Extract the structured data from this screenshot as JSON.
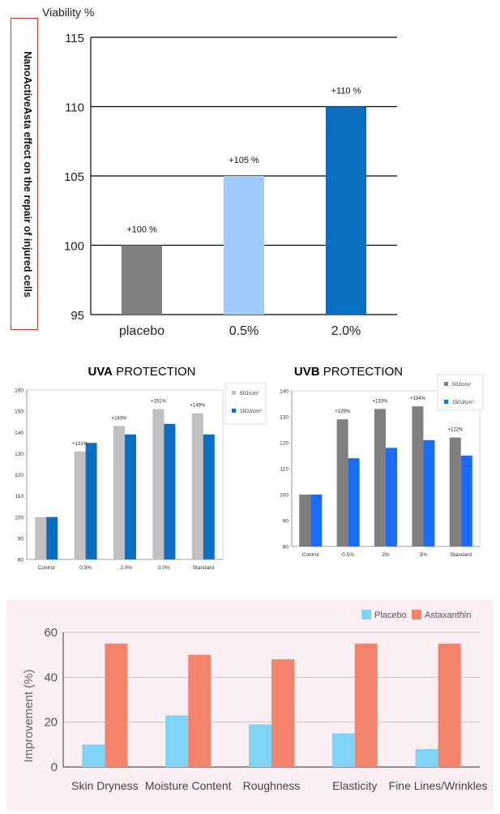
{
  "chart_data": [
    {
      "type": "bar",
      "side_label": "NanoActiveAsta effect on the repair of injured cells",
      "ylabel": "Viability %",
      "categories": [
        "placebo",
        "0.5%",
        "2.0%"
      ],
      "values": [
        100,
        105,
        110
      ],
      "bar_colors": [
        "#7f7f7f",
        "#9dcbfb",
        "#0a6fc2"
      ],
      "data_labels": [
        "+100  %",
        "+105  %",
        "+110  %"
      ],
      "ylim": [
        95,
        115
      ],
      "yticks": [
        95,
        100,
        105,
        110,
        115
      ],
      "grid": true
    },
    {
      "type": "bar",
      "title_bold": "UVA",
      "title_rest": " PROTECTION",
      "categories": [
        "Control",
        "0.5%",
        "2.0%",
        "3.0%",
        "Standard"
      ],
      "category_labels": [
        "Control",
        "0.5%",
        ". 2.0%",
        "3.0%",
        "Standard"
      ],
      "series": [
        {
          "name": "50J/cm²",
          "color": "#c0c0c0",
          "values": [
            100,
            131,
            143,
            151,
            149
          ]
        },
        {
          "name": "150J/cm²",
          "color": "#0a6fc2",
          "values": [
            100,
            135,
            139,
            144,
            139
          ]
        }
      ],
      "data_labels": [
        "",
        "+131%",
        "+143%",
        "+151%",
        "+149%"
      ],
      "ylim": [
        80,
        160
      ],
      "yticks": [
        80,
        90,
        100,
        110,
        120,
        130,
        140,
        150,
        160
      ],
      "grid": false,
      "legend_position": "top-right"
    },
    {
      "type": "bar",
      "title_bold": "UVB",
      "title_rest": " PROTECTION",
      "categories": [
        "Control",
        "0.5%",
        "2%",
        "3%",
        "Standard"
      ],
      "series": [
        {
          "name": "50J/cm²",
          "color": "#7f7f7f",
          "values": [
            100,
            129,
            133,
            134,
            122
          ]
        },
        {
          "name": "150J/cm²",
          "color": "#1a6cff",
          "values": [
            100,
            114,
            118,
            121,
            115
          ]
        }
      ],
      "data_labels": [
        "",
        "+129%",
        "+133%",
        "+134%",
        "+122%"
      ],
      "ylim": [
        80,
        140
      ],
      "yticks": [
        80,
        90,
        100,
        110,
        120,
        130,
        140
      ],
      "grid": false,
      "legend_position": "top-right"
    },
    {
      "type": "bar",
      "ylabel": "Improvement (%)",
      "categories": [
        "Skin Dryness",
        "Moisture Content",
        "Roughness",
        "Elasticity",
        "Fine Lines/Wrinkles"
      ],
      "series": [
        {
          "name": "Placebo",
          "color": "#7fd3f5",
          "values": [
            10,
            23,
            19,
            15,
            8
          ]
        },
        {
          "name": "Astaxanthin",
          "color": "#f4836a",
          "values": [
            55,
            50,
            48,
            55,
            55
          ]
        }
      ],
      "ylim": [
        0,
        60
      ],
      "yticks": [
        0,
        20,
        40,
        60
      ],
      "grid": true,
      "legend_position": "top-right",
      "background": "#fdf0f5"
    }
  ]
}
